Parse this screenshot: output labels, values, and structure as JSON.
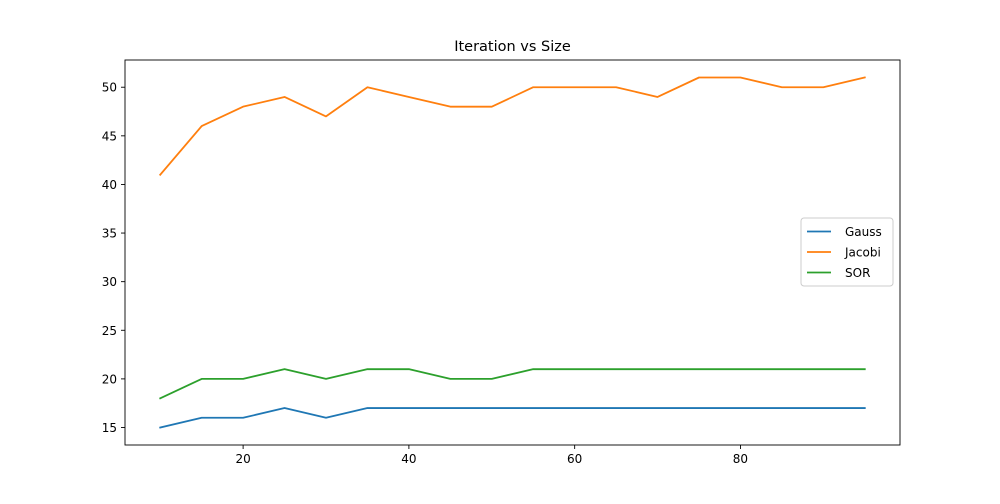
{
  "chart_data": {
    "type": "line",
    "title": "Iteration vs Size",
    "xlabel": "",
    "ylabel": "",
    "x": [
      10,
      15,
      20,
      25,
      30,
      35,
      40,
      45,
      50,
      55,
      60,
      65,
      70,
      75,
      80,
      85,
      90,
      95
    ],
    "xlim": [
      5.75,
      99.25
    ],
    "ylim": [
      13.2,
      52.8
    ],
    "xticks": [
      20,
      40,
      60,
      80
    ],
    "yticks": [
      15,
      20,
      25,
      30,
      35,
      40,
      45,
      50
    ],
    "grid": false,
    "legend_placement": "center-right",
    "series": [
      {
        "name": "Gauss",
        "color": "#1f77b4",
        "values": [
          15,
          16,
          16,
          17,
          16,
          17,
          17,
          17,
          17,
          17,
          17,
          17,
          17,
          17,
          17,
          17,
          17,
          17
        ]
      },
      {
        "name": "Jacobi",
        "color": "#ff7f0e",
        "values": [
          41,
          46,
          48,
          49,
          47,
          50,
          49,
          48,
          48,
          50,
          50,
          50,
          49,
          51,
          51,
          50,
          50,
          51
        ]
      },
      {
        "name": "SOR",
        "color": "#2ca02c",
        "values": [
          18,
          20,
          20,
          21,
          20,
          21,
          21,
          20,
          20,
          21,
          21,
          21,
          21,
          21,
          21,
          21,
          21,
          21
        ]
      }
    ]
  }
}
